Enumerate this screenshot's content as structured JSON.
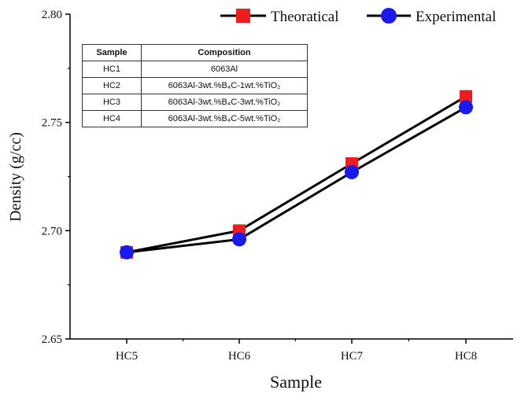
{
  "chart_data": {
    "type": "line",
    "xlabel": "Sample",
    "ylabel": "Density (g/cc)",
    "categories": [
      "HC5",
      "HC6",
      "HC7",
      "HC8"
    ],
    "ylim": [
      2.65,
      2.8
    ],
    "yticks": [
      "2.65",
      "2.70",
      "2.75",
      "2.80"
    ],
    "grid": false,
    "legend_position": "top-right",
    "series": [
      {
        "name": "Theoratical",
        "values": [
          2.69,
          2.7,
          2.731,
          2.762
        ],
        "marker": "square",
        "marker_color": "#ee1c1c",
        "line_color": "#000000"
      },
      {
        "name": "Experimental",
        "values": [
          2.69,
          2.696,
          2.727,
          2.757
        ],
        "marker": "circle",
        "marker_color": "#1a1aee",
        "line_color": "#000000"
      }
    ]
  },
  "inset_table": {
    "headers": [
      "Sample",
      "Composition"
    ],
    "rows": [
      {
        "sample": "HC1",
        "composition": "6063Al"
      },
      {
        "sample": "HC2",
        "composition": "6063Al-3wt.%B₄C-1wt.%TiO₂"
      },
      {
        "sample": "HC3",
        "composition": "6063Al-3wt.%B₄C-3wt.%TiO₂"
      },
      {
        "sample": "HC4",
        "composition": "6063Al-3wt.%B₄C-5wt.%TiO₂"
      }
    ]
  }
}
